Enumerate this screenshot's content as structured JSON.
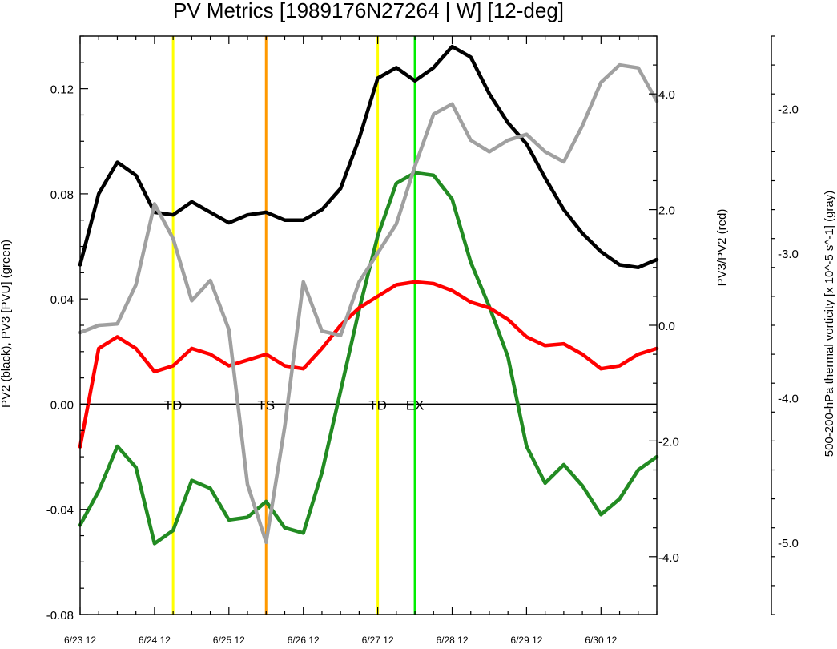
{
  "chart_data": {
    "type": "line",
    "title": "PV Metrics [1989176N27264 | W] [12-deg]",
    "ylabel_left": "PV2 (black), PV3 [PVU] (green)",
    "ylabel_right1": "PV3/PV2 (red)",
    "ylabel_right2": "500-200-hPa thermal vorticity [x 10^-5 s^-1] (gray)",
    "x_tick_labels": [
      "6/23 12",
      "6/24 12",
      "6/25 12",
      "6/26 12",
      "6/27 12",
      "6/28 12",
      "6/29 12",
      "6/30 12"
    ],
    "xlim": [
      0,
      31
    ],
    "ylim_left": [
      -0.08,
      0.14
    ],
    "ylim_right1": [
      -5.0,
      5.0
    ],
    "ylim_right2": [
      -5.5,
      -1.5
    ],
    "left_tick_labels": [
      "-0.08",
      "-0.04",
      "0.00",
      "0.04",
      "0.08",
      "0.12"
    ],
    "right1_tick_labels": [
      "-4.0",
      "-2.0",
      "0.0",
      "2.0",
      "4.0"
    ],
    "right2_tick_labels": [
      "-5.0",
      "-4.0",
      "-3.0",
      "-2.0"
    ],
    "zero_line": 0.0,
    "events": [
      {
        "label": "TD",
        "x": 5,
        "color": "#ffff00"
      },
      {
        "label": "TS",
        "x": 10,
        "color": "#ff9900"
      },
      {
        "label": "TD",
        "x": 16,
        "color": "#ffff00"
      },
      {
        "label": "EX",
        "x": 18,
        "color": "#00ee00"
      }
    ],
    "series": [
      {
        "name": "PV2",
        "color": "#000000",
        "axis": "left",
        "values": [
          0.053,
          0.08,
          0.092,
          0.087,
          0.073,
          0.072,
          0.077,
          0.073,
          0.069,
          0.072,
          0.073,
          0.07,
          0.07,
          0.074,
          0.082,
          0.101,
          0.124,
          0.128,
          0.123,
          0.128,
          0.136,
          0.132,
          0.118,
          0.107,
          0.099,
          0.086,
          0.074,
          0.065,
          0.058,
          0.053,
          0.052,
          0.055
        ]
      },
      {
        "name": "PV3",
        "color": "#228b22",
        "axis": "left",
        "values": [
          -0.046,
          -0.033,
          -0.016,
          -0.024,
          -0.053,
          -0.048,
          -0.029,
          -0.032,
          -0.044,
          -0.043,
          -0.037,
          -0.047,
          -0.049,
          -0.026,
          0.005,
          0.036,
          0.064,
          0.084,
          0.088,
          0.087,
          0.078,
          0.054,
          0.037,
          0.018,
          -0.016,
          -0.03,
          -0.023,
          -0.031,
          -0.042,
          -0.036,
          -0.025,
          -0.02
        ]
      },
      {
        "name": "PV3/PV2",
        "color": "#ff0000",
        "axis": "right1",
        "values": [
          -2.1,
          -0.4,
          -0.2,
          -0.4,
          -0.8,
          -0.7,
          -0.4,
          -0.5,
          -0.7,
          -0.6,
          -0.5,
          -0.7,
          -0.75,
          -0.4,
          0.0,
          0.3,
          0.5,
          0.7,
          0.75,
          0.72,
          0.6,
          0.4,
          0.3,
          0.1,
          -0.2,
          -0.35,
          -0.32,
          -0.5,
          -0.75,
          -0.7,
          -0.5,
          -0.4
        ]
      },
      {
        "name": "thermal vorticity",
        "color": "#a0a0a0",
        "axis": "right2",
        "values": [
          -3.55,
          -3.5,
          -3.49,
          -3.22,
          -2.66,
          -2.9,
          -3.33,
          -3.19,
          -3.53,
          -4.6,
          -5.0,
          -4.2,
          -3.2,
          -3.54,
          -3.57,
          -3.2,
          -3.0,
          -2.8,
          -2.4,
          -2.04,
          -1.97,
          -2.22,
          -2.3,
          -2.22,
          -2.18,
          -2.3,
          -2.37,
          -2.12,
          -1.82,
          -1.7,
          -1.72,
          -1.95
        ]
      }
    ]
  }
}
